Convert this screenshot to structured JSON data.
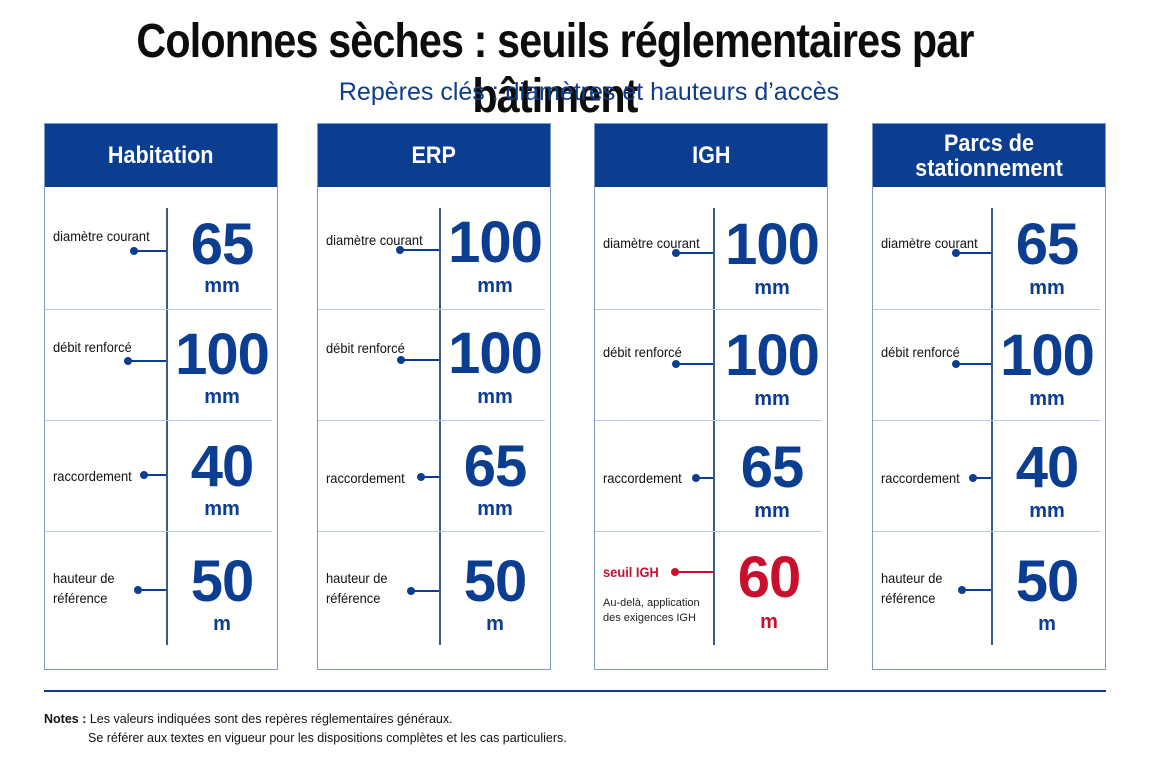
{
  "title": "Colonnes sèches : seuils réglementaires par bâtiment",
  "subtitle": "Repères clés : diamètres et hauteurs d’accès",
  "panels": [
    {
      "title": "Habitation",
      "rows": [
        {
          "label": "diamètre courant",
          "value": "65",
          "unit": "mm"
        },
        {
          "label": "débit renforcé",
          "value": "100",
          "unit": "mm"
        },
        {
          "label": "raccordement",
          "value": "40",
          "unit": "mm"
        },
        {
          "label": "hauteur de référence",
          "value": "50",
          "unit": "m"
        }
      ]
    },
    {
      "title": "ERP",
      "rows": [
        {
          "label": "diamètre courant",
          "value": "100",
          "unit": "mm"
        },
        {
          "label": "débit renforcé",
          "value": "100",
          "unit": "mm"
        },
        {
          "label": "raccordement",
          "value": "65",
          "unit": "mm"
        },
        {
          "label": "hauteur de référence",
          "value": "50",
          "unit": "m"
        }
      ]
    },
    {
      "title": "IGH",
      "rows": [
        {
          "label": "diamètre courant",
          "value": "100",
          "unit": "mm"
        },
        {
          "label": "débit renforcé",
          "value": "100",
          "unit": "mm"
        },
        {
          "label": "raccordement",
          "value": "65",
          "unit": "mm"
        },
        {
          "label": "seuil IGH",
          "value": "60",
          "unit": "m",
          "note": "Au-delà, application des exigences IGH"
        }
      ]
    },
    {
      "title": "Parcs de stationnement",
      "rows": [
        {
          "label": "diamètre courant",
          "value": "65",
          "unit": "mm"
        },
        {
          "label": "débit renforcé",
          "value": "100",
          "unit": "mm"
        },
        {
          "label": "raccordement",
          "value": "40",
          "unit": "mm"
        },
        {
          "label": "hauteur de référence",
          "value": "50",
          "unit": "m"
        }
      ]
    }
  ],
  "notes": {
    "prefix": "Notes :",
    "line1": "Les valeurs indiquées sont des repères réglementaires généraux.",
    "line2": "Se référer aux textes en vigueur pour les dispositions complètes et les cas particuliers."
  },
  "colors": {
    "primary": "#0b3d91",
    "alert": "#c8102e"
  }
}
